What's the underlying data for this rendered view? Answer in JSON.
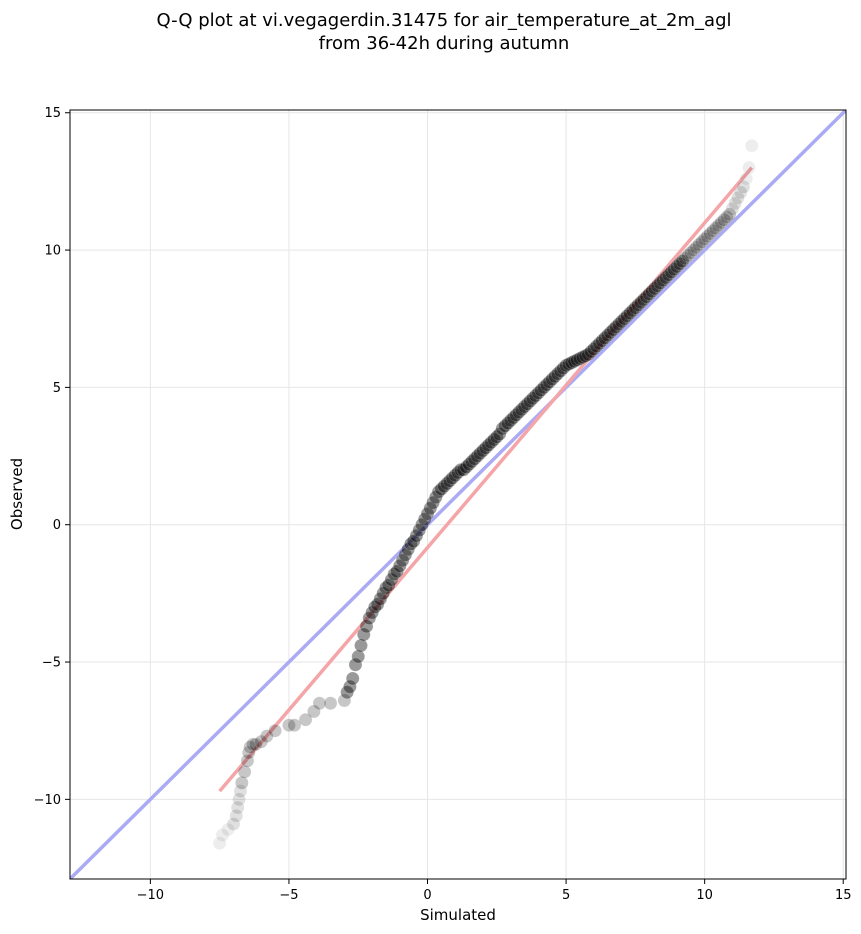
{
  "chart_data": {
    "type": "scatter",
    "title_lines": [
      "Q-Q plot at vi.vegagerdin.31475 for air_temperature_at_2m_agl",
      "from 36-42h during autumn"
    ],
    "xlabel": "Simulated",
    "ylabel": "Observed",
    "xlim": [
      -12.9,
      15.1
    ],
    "ylim": [
      -12.9,
      15.1
    ],
    "xticks": [
      -10,
      -5,
      0,
      5,
      10,
      15
    ],
    "yticks": [
      -10,
      -5,
      0,
      5,
      10,
      15
    ],
    "xtick_labels": [
      "−10",
      "−5",
      "0",
      "5",
      "10",
      "15"
    ],
    "ytick_labels": [
      "−10",
      "−5",
      "0",
      "5",
      "10",
      "15"
    ],
    "grid": true,
    "identity_line": {
      "color": "#aaaaf5",
      "from": [
        -12.9,
        -12.9
      ],
      "to": [
        15.1,
        15.1
      ]
    },
    "fit_line": {
      "color": "#f5a5a8",
      "from": [
        -7.5,
        -9.7
      ],
      "to": [
        11.7,
        13.0
      ]
    },
    "point_color": "#000000",
    "series": [
      {
        "x": [
          -7.5,
          -7.4,
          -7.2,
          -7.0,
          -6.9,
          -6.85,
          -6.8,
          -6.75,
          -6.7,
          -6.6,
          -6.5,
          -6.45,
          -6.4,
          -6.3,
          -6.2,
          -6.0,
          -5.8,
          -5.5,
          -5.0,
          -4.8,
          -4.4,
          -4.1,
          -3.9,
          -3.5,
          -3.0,
          -2.9,
          -2.8,
          -2.7,
          -2.6,
          -2.5,
          -2.4,
          -2.3,
          -2.2,
          -2.1,
          -2.0,
          -1.9,
          -1.8,
          -1.7,
          -1.6,
          -1.5,
          -1.4,
          -1.3,
          -1.2,
          -1.1,
          -1.0,
          -0.9,
          -0.8,
          -0.7,
          -0.6,
          -0.5,
          -0.4,
          -0.3,
          -0.2,
          -0.1,
          0.0,
          0.1,
          0.2,
          0.3,
          0.4,
          0.5,
          0.6,
          0.7,
          0.8,
          0.9,
          1.0,
          1.1,
          1.2,
          1.3,
          1.4,
          1.5,
          1.6,
          1.7,
          1.8,
          1.9,
          2.0,
          2.1,
          2.2,
          2.3,
          2.4,
          2.5,
          2.6,
          2.7,
          2.8,
          2.9,
          3.0,
          3.1,
          3.2,
          3.3,
          3.4,
          3.5,
          3.6,
          3.7,
          3.8,
          3.9,
          4.0,
          4.1,
          4.2,
          4.3,
          4.4,
          4.5,
          4.6,
          4.7,
          4.8,
          4.9,
          5.0,
          5.1,
          5.2,
          5.3,
          5.4,
          5.5,
          5.6,
          5.7,
          5.8,
          5.9,
          6.0,
          6.1,
          6.2,
          6.3,
          6.4,
          6.5,
          6.6,
          6.7,
          6.8,
          6.9,
          7.0,
          7.1,
          7.2,
          7.3,
          7.4,
          7.5,
          7.6,
          7.7,
          7.8,
          7.9,
          8.0,
          8.1,
          8.2,
          8.3,
          8.4,
          8.5,
          8.6,
          8.7,
          8.8,
          8.9,
          9.0,
          9.1,
          9.2,
          9.3,
          9.4,
          9.5,
          9.6,
          9.7,
          9.8,
          9.9,
          10.0,
          10.1,
          10.2,
          10.3,
          10.4,
          10.5,
          10.6,
          10.7,
          10.8,
          10.9,
          11.0,
          11.1,
          11.2,
          11.3,
          11.4,
          11.5,
          11.6,
          11.7
        ],
        "y": [
          -11.6,
          -11.3,
          -11.1,
          -10.9,
          -10.6,
          -10.3,
          -10.0,
          -9.7,
          -9.4,
          -9.0,
          -8.6,
          -8.3,
          -8.1,
          -8.0,
          -8.0,
          -7.9,
          -7.7,
          -7.5,
          -7.3,
          -7.3,
          -7.1,
          -6.8,
          -6.5,
          -6.5,
          -6.4,
          -6.1,
          -5.9,
          -5.6,
          -5.1,
          -4.8,
          -4.4,
          -4.0,
          -3.7,
          -3.4,
          -3.2,
          -3.0,
          -2.9,
          -2.7,
          -2.5,
          -2.3,
          -2.2,
          -2.0,
          -1.8,
          -1.7,
          -1.5,
          -1.3,
          -1.1,
          -0.9,
          -0.7,
          -0.6,
          -0.4,
          -0.2,
          0.0,
          0.2,
          0.4,
          0.6,
          0.8,
          1.0,
          1.2,
          1.3,
          1.4,
          1.5,
          1.6,
          1.7,
          1.8,
          1.9,
          2.0,
          2.0,
          2.1,
          2.2,
          2.3,
          2.4,
          2.5,
          2.6,
          2.7,
          2.8,
          2.9,
          3.0,
          3.1,
          3.2,
          3.3,
          3.5,
          3.6,
          3.7,
          3.8,
          3.9,
          4.0,
          4.1,
          4.2,
          4.3,
          4.4,
          4.5,
          4.6,
          4.7,
          4.8,
          4.9,
          5.0,
          5.1,
          5.2,
          5.3,
          5.4,
          5.5,
          5.6,
          5.7,
          5.8,
          5.85,
          5.9,
          5.95,
          6.0,
          6.05,
          6.1,
          6.15,
          6.2,
          6.3,
          6.4,
          6.5,
          6.6,
          6.7,
          6.8,
          6.9,
          7.0,
          7.1,
          7.2,
          7.3,
          7.4,
          7.5,
          7.6,
          7.7,
          7.8,
          7.9,
          8.0,
          8.1,
          8.2,
          8.3,
          8.4,
          8.5,
          8.6,
          8.7,
          8.8,
          8.9,
          9.0,
          9.1,
          9.2,
          9.3,
          9.4,
          9.5,
          9.6,
          9.7,
          9.8,
          9.9,
          10.0,
          10.1,
          10.2,
          10.3,
          10.4,
          10.5,
          10.6,
          10.7,
          10.8,
          10.9,
          11.0,
          11.1,
          11.2,
          11.3,
          11.5,
          11.7,
          11.9,
          12.1,
          12.3,
          12.6,
          13.0,
          13.8
        ]
      }
    ]
  }
}
